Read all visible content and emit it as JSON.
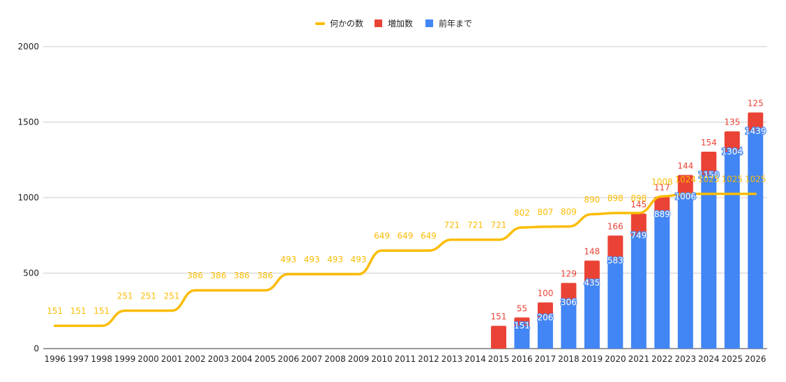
{
  "chart_data": {
    "type": "bar",
    "stacked": true,
    "categories": [
      "1996",
      "1997",
      "1998",
      "1999",
      "2000",
      "2001",
      "2002",
      "2003",
      "2004",
      "2005",
      "2006",
      "2007",
      "2008",
      "2009",
      "2010",
      "2011",
      "2012",
      "2013",
      "2014",
      "2015",
      "2016",
      "2017",
      "2018",
      "2019",
      "2020",
      "2021",
      "2022",
      "2023",
      "2024",
      "2025",
      "2026"
    ],
    "series": [
      {
        "name": "前年まで",
        "kind": "bar",
        "color": "#4285f4",
        "values": [
          null,
          null,
          null,
          null,
          null,
          null,
          null,
          null,
          null,
          null,
          null,
          null,
          null,
          null,
          null,
          null,
          null,
          null,
          null,
          null,
          151,
          206,
          306,
          435,
          583,
          749,
          889,
          1006,
          1150,
          1304,
          1439
        ]
      },
      {
        "name": "増加数",
        "kind": "bar",
        "color": "#ea4335",
        "values": [
          null,
          null,
          null,
          null,
          null,
          null,
          null,
          null,
          null,
          null,
          null,
          null,
          null,
          null,
          null,
          null,
          null,
          null,
          null,
          151,
          55,
          100,
          129,
          148,
          166,
          145,
          117,
          144,
          154,
          135,
          125
        ]
      },
      {
        "name": "何かの数",
        "kind": "line",
        "color": "#fbbc04",
        "values": [
          151,
          151,
          151,
          251,
          251,
          251,
          386,
          386,
          386,
          386,
          493,
          493,
          493,
          493,
          649,
          649,
          649,
          721,
          721,
          721,
          802,
          807,
          809,
          890,
          898,
          898,
          1008,
          1024,
          1025,
          1025,
          1025
        ]
      }
    ],
    "title": "",
    "xlabel": "",
    "ylabel": "",
    "ylim": [
      0,
      2000
    ],
    "yticks": [
      "0",
      "500",
      "1000",
      "1500",
      "2000"
    ],
    "grid": true,
    "legend_position": "top"
  },
  "legend": {
    "items": [
      {
        "label": "何かの数",
        "color": "#fbbc04",
        "shape": "line"
      },
      {
        "label": "増加数",
        "color": "#ea4335",
        "shape": "square"
      },
      {
        "label": "前年まで",
        "color": "#4285f4",
        "shape": "square"
      }
    ]
  }
}
